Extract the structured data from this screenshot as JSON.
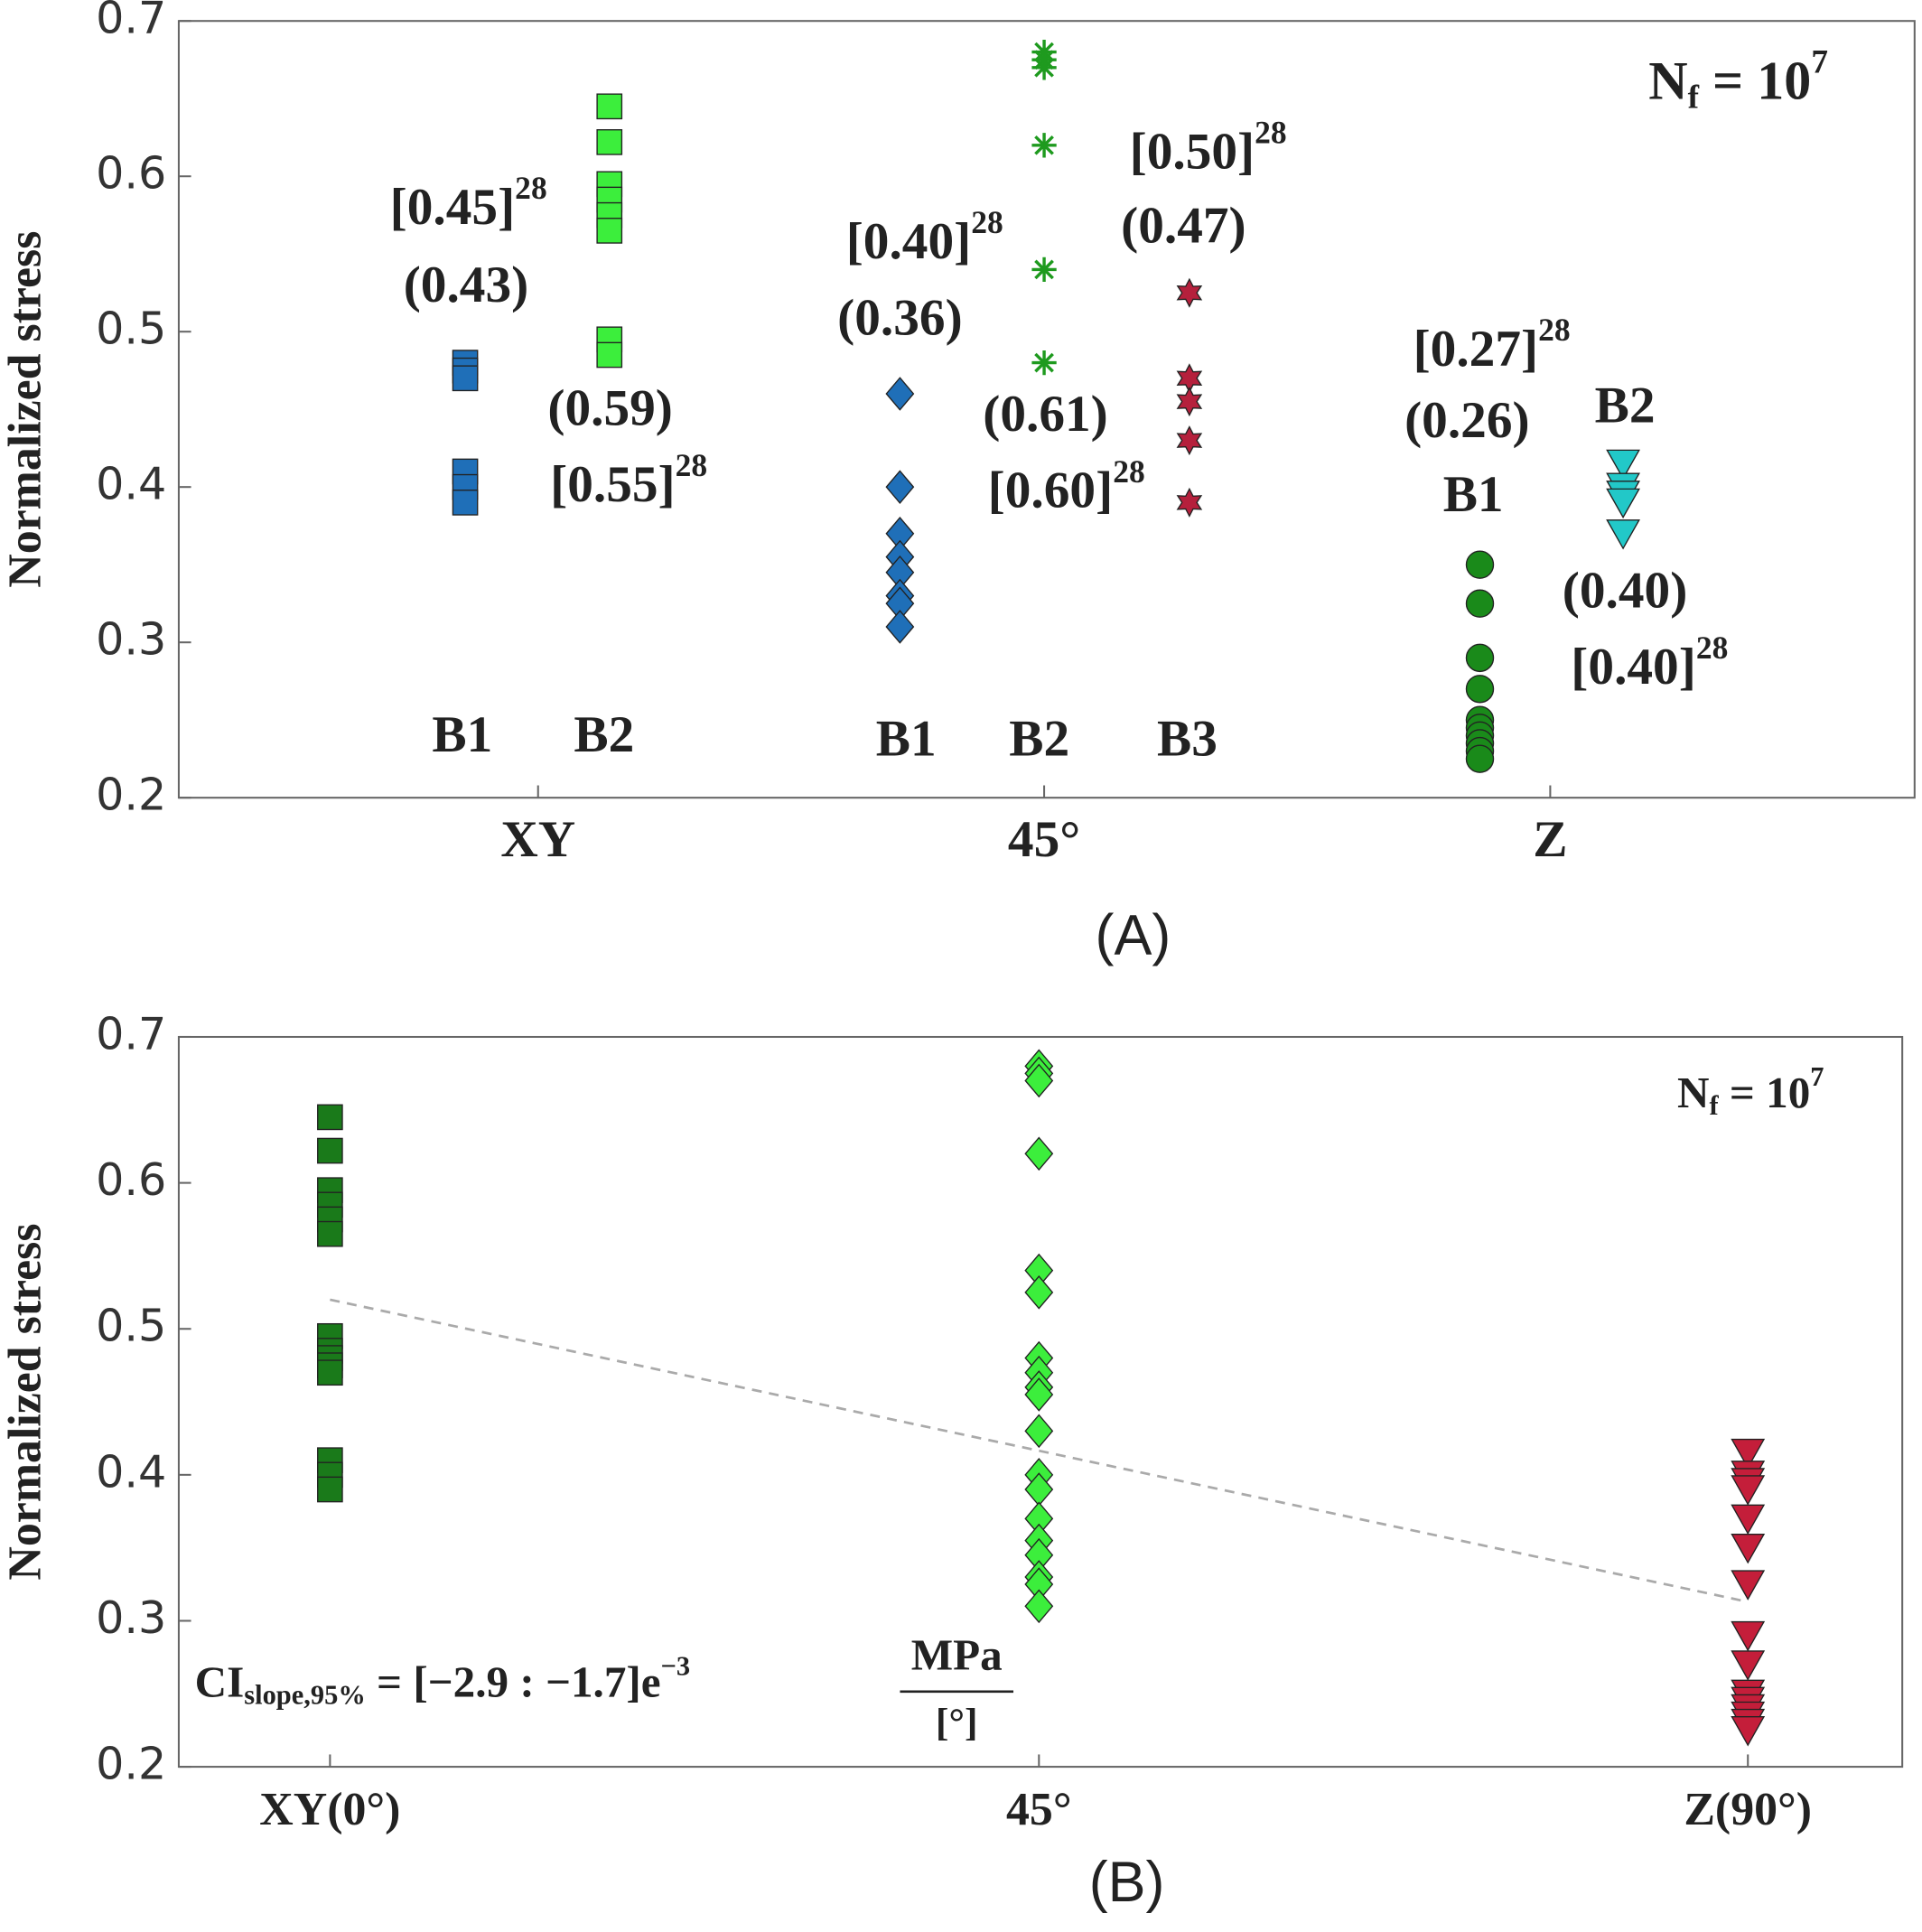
{
  "chart_data": [
    {
      "type": "scatter",
      "caption": "(A)",
      "ylabel": "Normalized stress",
      "ylim": [
        0.2,
        0.7
      ],
      "yticks": [
        0.2,
        0.3,
        0.4,
        0.5,
        0.6,
        0.7
      ],
      "xlim": [
        0.29,
        3.72
      ],
      "xticks": [
        {
          "value": 1,
          "label": "XY"
        },
        {
          "value": 2,
          "label": "45°"
        },
        {
          "value": 3,
          "label": "Z"
        }
      ],
      "note": {
        "main": "N",
        "sub": "f",
        "eq": " = 10",
        "sup": "7"
      },
      "series": [
        {
          "name": "B1",
          "marker": "square",
          "color": "#1f6fb8",
          "x": [
            0.856,
            0.856,
            0.856,
            0.856,
            0.856,
            0.856
          ],
          "values": [
            0.48,
            0.475,
            0.47,
            0.41,
            0.4,
            0.39
          ],
          "labels": [
            {
              "text": "[0.45]",
              "sup": "28"
            },
            {
              "text": "(0.43)"
            }
          ]
        },
        {
          "name": "B2",
          "marker": "square",
          "color": "#3cee3c",
          "x": [
            1.141,
            1.141,
            1.141,
            1.141,
            1.141,
            1.141,
            1.141,
            1.141
          ],
          "values": [
            0.645,
            0.622,
            0.595,
            0.585,
            0.575,
            0.565,
            0.495,
            0.485
          ],
          "labels": [
            {
              "text": "(0.59)"
            },
            {
              "text": "[0.55]",
              "sup": "28"
            }
          ]
        },
        {
          "name": "B1",
          "marker": "diamond",
          "color": "#1f6fb8",
          "x": [
            1.715,
            1.715,
            1.715,
            1.715,
            1.715,
            1.715,
            1.715,
            1.715
          ],
          "values": [
            0.46,
            0.4,
            0.37,
            0.355,
            0.345,
            0.33,
            0.325,
            0.31
          ],
          "labels": [
            {
              "text": "[0.40]",
              "sup": "28"
            },
            {
              "text": "(0.36)"
            }
          ]
        },
        {
          "name": "B2",
          "marker": "asterisk",
          "color": "#1e9a1e",
          "x": [
            2.0,
            2.0,
            2.0,
            2.0,
            2.0,
            2.0
          ],
          "values": [
            0.68,
            0.675,
            0.67,
            0.62,
            0.54,
            0.48
          ],
          "labels": [
            {
              "text": "(0.61)"
            },
            {
              "text": "[0.60]",
              "sup": "28"
            }
          ]
        },
        {
          "name": "B3",
          "marker": "hexagram",
          "color": "#b5203c",
          "x": [
            2.287,
            2.287,
            2.287,
            2.287,
            2.287
          ],
          "values": [
            0.525,
            0.47,
            0.455,
            0.43,
            0.39
          ],
          "labels": [
            {
              "text": "[0.50]",
              "sup": "28"
            },
            {
              "text": "(0.47)"
            }
          ]
        },
        {
          "name": "B1",
          "marker": "circle",
          "color": "#1a8a1a",
          "x": [
            2.861,
            2.861,
            2.861,
            2.861,
            2.861,
            2.861,
            2.861,
            2.861,
            2.861,
            2.861
          ],
          "values": [
            0.35,
            0.325,
            0.29,
            0.27,
            0.25,
            0.245,
            0.24,
            0.235,
            0.23,
            0.225
          ],
          "labels": [
            {
              "text": "[0.27]",
              "sup": "28"
            },
            {
              "text": "(0.26)"
            }
          ]
        },
        {
          "name": "B2",
          "marker": "triangle-down",
          "color": "#22c8c8",
          "x": [
            3.144,
            3.144,
            3.144,
            3.144,
            3.144
          ],
          "values": [
            0.415,
            0.4,
            0.395,
            0.39,
            0.37
          ],
          "labels": [
            {
              "text": "(0.40)"
            },
            {
              "text": "[0.40]",
              "sup": "28"
            }
          ]
        }
      ]
    },
    {
      "type": "scatter",
      "caption": "(B)",
      "ylabel": "Normalized stress",
      "ylim": [
        0.2,
        0.7
      ],
      "yticks": [
        0.2,
        0.3,
        0.4,
        0.5,
        0.6,
        0.7
      ],
      "xlim": [
        -9.6,
        99.8
      ],
      "xticks": [
        {
          "value": 0,
          "label": "XY(0°)"
        },
        {
          "value": 45,
          "label": "45°"
        },
        {
          "value": 90,
          "label": "Z(90°)"
        }
      ],
      "note": {
        "main": "N",
        "sub": "f",
        "eq": " = 10",
        "sup": "7"
      },
      "ci": {
        "main": "CI",
        "sub": "slope,95%",
        "eq": " = [−2.9 : −1.7]e",
        "sup": "−3",
        "num": "MPa",
        "den": "[°]"
      },
      "trend": {
        "x": [
          0,
          90
        ],
        "values": [
          0.52,
          0.313
        ],
        "color": "#aaaaaa"
      },
      "series": [
        {
          "marker": "square",
          "color": "#1a7a1a",
          "x": [
            0,
            0,
            0,
            0,
            0,
            0,
            0,
            0,
            0,
            0,
            0,
            0,
            0,
            0
          ],
          "values": [
            0.645,
            0.622,
            0.595,
            0.585,
            0.575,
            0.565,
            0.495,
            0.485,
            0.48,
            0.475,
            0.47,
            0.41,
            0.4,
            0.39
          ]
        },
        {
          "marker": "diamond",
          "color": "#3cee3c",
          "x": [
            45,
            45,
            45,
            45,
            45,
            45,
            45,
            45,
            45,
            45,
            45,
            45,
            45,
            45,
            45,
            45,
            45,
            45,
            45
          ],
          "values": [
            0.68,
            0.675,
            0.67,
            0.62,
            0.54,
            0.525,
            0.48,
            0.47,
            0.46,
            0.455,
            0.43,
            0.4,
            0.39,
            0.37,
            0.355,
            0.345,
            0.33,
            0.325,
            0.31
          ]
        },
        {
          "marker": "triangle-down",
          "color": "#c41e3a",
          "x": [
            90,
            90,
            90,
            90,
            90,
            90,
            90,
            90,
            90,
            90,
            90,
            90,
            90,
            90,
            90
          ],
          "values": [
            0.415,
            0.4,
            0.395,
            0.39,
            0.37,
            0.35,
            0.325,
            0.29,
            0.27,
            0.25,
            0.245,
            0.24,
            0.235,
            0.23,
            0.225
          ]
        }
      ]
    }
  ]
}
